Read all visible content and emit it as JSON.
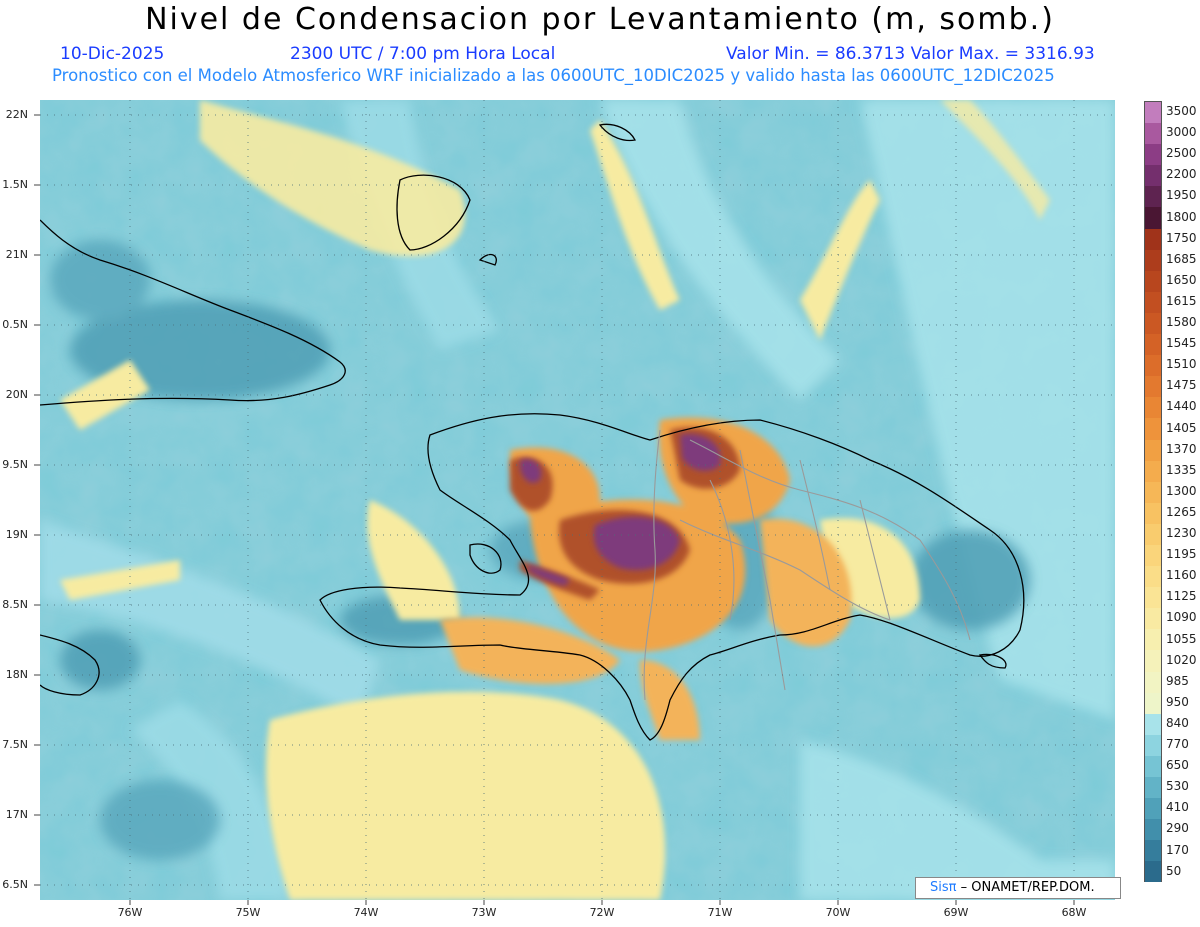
{
  "header": {
    "title": "Nivel de Condensacion por Levantamiento (m, somb.)",
    "date": "10-Dic-2025",
    "time": "2300 UTC / 7:00 pm Hora Local",
    "minmax": "Valor Min. = 86.3713   Valor Max. = 3316.93",
    "model_line": "Pronostico con el Modelo Atmosferico WRF inicializado a las 0600UTC_10DIC2025 y valido hasta las  0600UTC_12DIC2025"
  },
  "map": {
    "lat_labels": [
      "22N",
      "1.5N",
      "21N",
      "0.5N",
      "20N",
      "9.5N",
      "19N",
      "8.5N",
      "18N",
      "7.5N",
      "17N",
      "6.5N"
    ],
    "lon_labels": [
      "76W",
      "75W",
      "74W",
      "73W",
      "72W",
      "71W",
      "70W",
      "69W",
      "68W"
    ]
  },
  "colorbar": {
    "labels": [
      "3500",
      "3000",
      "2500",
      "2200",
      "1950",
      "1800",
      "1750",
      "1685",
      "1650",
      "1615",
      "1580",
      "1545",
      "1510",
      "1475",
      "1440",
      "1405",
      "1370",
      "1335",
      "1300",
      "1265",
      "1230",
      "1195",
      "1160",
      "1125",
      "1090",
      "1055",
      "1020",
      "985",
      "950",
      "840",
      "770",
      "650",
      "530",
      "410",
      "290",
      "170",
      "50"
    ],
    "colors": [
      "#c27dbd",
      "#a9599f",
      "#8c3d85",
      "#742f6d",
      "#5e2350",
      "#4a1633",
      "#a0331a",
      "#ad3d1c",
      "#b8461e",
      "#c24f21",
      "#cb5823",
      "#d46226",
      "#dc6d2a",
      "#e3792f",
      "#e98634",
      "#ee933b",
      "#f1a043",
      "#f4ac4d",
      "#f6b757",
      "#f8c262",
      "#f9cc6e",
      "#fad57b",
      "#fadd88",
      "#fae495",
      "#f9eaa2",
      "#f7efaf",
      "#f5f2ba",
      "#f2f4c3",
      "#eef5c9",
      "#a8e3ea",
      "#8dd4e0",
      "#76c4d4",
      "#62b3c7",
      "#50a1b9",
      "#418fab",
      "#357d9c",
      "#2b6b8c"
    ]
  },
  "credit": {
    "brand": "Sisπ",
    "rest": " –  ONAMET/REP.DOM."
  },
  "colors": {
    "ocean_base": "#7ccbd8",
    "ocean_light": "#a6e2ea",
    "yellow": "#f7eba1",
    "orange": "#f0a54a",
    "brown": "#b0512a",
    "purple": "#7e3a7c",
    "title_blue": "#1a3cff",
    "subtitle_blue": "#2b8cff"
  }
}
